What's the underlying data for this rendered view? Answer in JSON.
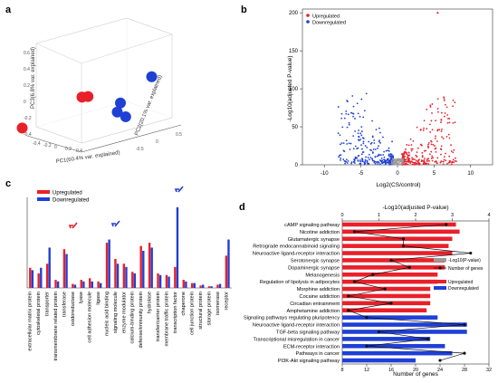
{
  "panel_labels": {
    "a": "a",
    "b": "b",
    "c": "c",
    "d": "d"
  },
  "legend": {
    "up": "Upregulated",
    "down": "Downregulated"
  },
  "colors": {
    "up": "#e8202a",
    "down": "#1f3fd6",
    "gray": "#9a9a9a"
  },
  "chart_data": [
    {
      "panel": "a",
      "type": "scatter",
      "xlabel": "PC1(60.4% var. explained)",
      "ylabel": "PC2(20.1% var. explained)",
      "zlabel": "PC3(6.8% var. explained)",
      "xticks": [
        "-0.4",
        "-0.2",
        "0",
        "0.2",
        "0.4"
      ],
      "yticks": [
        "-0.5",
        "0",
        "0.5"
      ],
      "zticks": [
        "-0.4",
        "-0.2",
        "0",
        "0.2",
        "0.4",
        "0.6"
      ],
      "groups": [
        {
          "name": "Upregulated",
          "points": [
            [
              -0.25,
              0.1,
              0.45
            ],
            [
              -0.2,
              0.12,
              0.45
            ],
            [
              -0.55,
              -0.45,
              -0.1
            ]
          ]
        },
        {
          "name": "Downregulated",
          "points": [
            [
              0.45,
              0.1,
              0.55
            ],
            [
              0.3,
              -0.2,
              0.1
            ],
            [
              0.35,
              -0.35,
              -0.1
            ],
            [
              0.38,
              -0.25,
              -0.15
            ]
          ]
        }
      ]
    },
    {
      "panel": "b",
      "type": "scatter",
      "xlabel": "Log2(CS/control)",
      "ylabel": "-Log10(adjusted P-value)",
      "xticks": [
        "-10",
        "-5",
        "0",
        "5",
        "10"
      ],
      "yticks": [
        "0",
        "50",
        "100",
        "150",
        "200"
      ],
      "xlim": [
        -13,
        13
      ],
      "ylim": [
        0,
        205
      ],
      "legend": [
        "Upregulated",
        "Downregulated"
      ]
    },
    {
      "panel": "c",
      "type": "bar",
      "legend": [
        "Upregulated",
        "Downregulated"
      ],
      "categories": [
        "extracellular matrix protein",
        "cytoskeletal protein",
        "transporter",
        "transmembrane related protein",
        "transferase",
        "oxidoreductase",
        "lyase",
        "cell adhesion molecule",
        "ligase",
        "nucleic acid binding",
        "signaling molecule",
        "enzyme modulator",
        "calcium-binding protein",
        "defense/immunity protein",
        "hydrolase",
        "transfer/carrier protein",
        "membrane traffic protein",
        "transcription factor",
        "chaperone",
        "cell junction protein",
        "structural protein",
        "storage protein",
        "isomerase",
        "receptor"
      ],
      "series": [
        {
          "name": "Upregulated",
          "values": [
            25,
            18,
            30,
            10,
            48,
            5,
            10,
            12,
            8,
            56,
            36,
            30,
            20,
            52,
            56,
            18,
            16,
            26,
            10,
            6,
            3,
            2,
            4,
            40
          ]
        },
        {
          "name": "Downregulated",
          "values": [
            22,
            25,
            50,
            8,
            42,
            4,
            8,
            8,
            6,
            60,
            30,
            26,
            18,
            46,
            50,
            16,
            14,
            100,
            8,
            6,
            4,
            2,
            5,
            60
          ]
        }
      ]
    },
    {
      "panel": "d",
      "type": "bar",
      "xlabel": "Number of genes",
      "x2label": "-Log10(adjusted P-value)",
      "xticks": [
        "8",
        "12",
        "16",
        "20",
        "24",
        "28",
        "32"
      ],
      "x2ticks": [
        "0",
        "1",
        "2",
        "3",
        "4"
      ],
      "legend_line": [
        "-Log10(P-value)",
        "Number of genes"
      ],
      "legend_bar": [
        "Upregulated",
        "Downregulated"
      ],
      "categories": [
        "cAMP signaling pathway",
        "Nicotine addiction",
        "Glutamatergic synapse",
        "Retrograde endocannabinoid signaling",
        "Neuroactive ligand-receptor interaction",
        "Serotonergic synapse",
        "Dopaminergic synapse",
        "Melanogenesis",
        "Regulation of lipolysis in adipocytes",
        "Morphine addiction",
        "Cocaine addiction",
        "Circadian entrainment",
        "Amphetamine addiction",
        "Signaling pathways regulating pluripotency",
        "Neuroactive ligand-receptor interaction",
        "TGF-beta signaling pathway",
        "Transcriptional misregulation in cancer",
        "ECM-receptor interaction",
        "Pathways in cancer",
        "PI3K-Akt signaling pathway"
      ],
      "regulation": [
        "up",
        "up",
        "up",
        "up",
        "up",
        "up",
        "up",
        "up",
        "up",
        "up",
        "up",
        "up",
        "up",
        "down",
        "down",
        "down",
        "down",
        "down",
        "down",
        "down"
      ],
      "pvalue_log10": [
        3.1,
        3.2,
        3.0,
        2.9,
        3.0,
        2.8,
        2.8,
        2.6,
        2.6,
        2.4,
        2.4,
        2.4,
        2.3,
        2.6,
        3.4,
        3.4,
        2.4,
        2.8,
        3.0,
        2.0
      ],
      "num_genes": [
        25,
        10,
        18,
        18,
        29,
        16,
        19,
        13,
        10,
        15,
        9,
        16,
        9,
        12,
        28,
        14,
        22,
        12,
        28,
        24
      ]
    }
  ]
}
